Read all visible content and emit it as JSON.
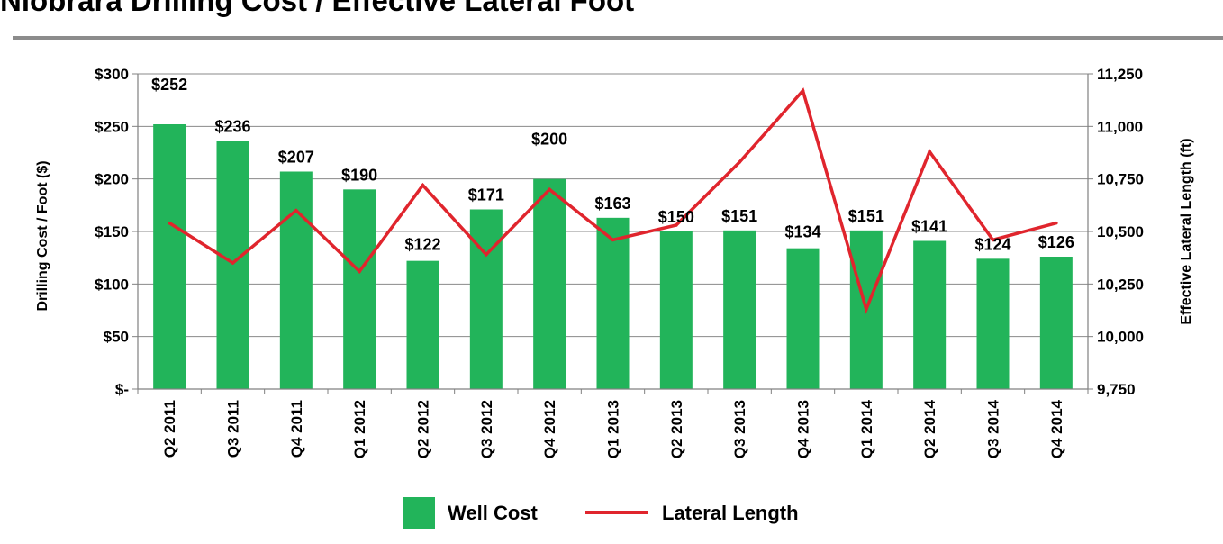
{
  "title": "Niobrara Drilling Cost / Effective Lateral Foot",
  "chart_data": {
    "type": "bar",
    "categories": [
      "Q2 2011",
      "Q3 2011",
      "Q4 2011",
      "Q1 2012",
      "Q2 2012",
      "Q3 2012",
      "Q4 2012",
      "Q1 2013",
      "Q2 2013",
      "Q3 2013",
      "Q4 2013",
      "Q1 2014",
      "Q2 2014",
      "Q3 2014",
      "Q4 2014"
    ],
    "series": [
      {
        "name": "Well Cost",
        "type": "bar",
        "axis": "left",
        "color": "#22b45a",
        "values": [
          252,
          236,
          207,
          190,
          122,
          171,
          200,
          163,
          150,
          151,
          134,
          151,
          141,
          124,
          126
        ],
        "labels": [
          "$252",
          "$236",
          "$207",
          "$190",
          "$122",
          "$171",
          "$200",
          "$163",
          "$150",
          "$151",
          "$134",
          "$151",
          "$141",
          "$124",
          "$126"
        ]
      },
      {
        "name": "Lateral Length",
        "type": "line",
        "axis": "right",
        "color": "#e0252d",
        "values": [
          10540,
          10350,
          10600,
          10310,
          10720,
          10390,
          10700,
          10460,
          10530,
          10830,
          11170,
          10130,
          10880,
          10460,
          10540
        ]
      }
    ],
    "ylabel": "Drilling Cost / Foot ($)",
    "y2label": "Effective Lateral Length (ft)",
    "ylim": [
      0,
      300
    ],
    "y2lim": [
      9750,
      11250
    ],
    "yticks": [
      "$-",
      "$50",
      "$100",
      "$150",
      "$200",
      "$250",
      "$300"
    ],
    "y2ticks": [
      "9,750",
      "10,000",
      "10,250",
      "10,500",
      "10,750",
      "11,000",
      "11,250"
    ],
    "grid": true,
    "legend_position": "bottom"
  }
}
